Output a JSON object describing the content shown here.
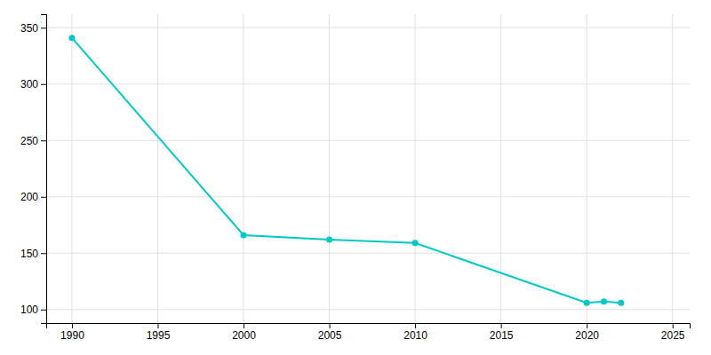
{
  "chart_data": {
    "type": "line",
    "x": [
      1990,
      2000,
      2005,
      2010,
      2020,
      2021,
      2022
    ],
    "values": [
      341,
      166,
      162,
      159,
      106,
      107,
      106
    ],
    "color": "#00C8C8",
    "marker": "circle",
    "xlim": [
      1988.5,
      2026
    ],
    "ylim": [
      88,
      362
    ],
    "xticks": [
      1990,
      1995,
      2000,
      2005,
      2010,
      2015,
      2020,
      2025
    ],
    "yticks": [
      100,
      150,
      200,
      250,
      300,
      350
    ],
    "grid": true
  }
}
